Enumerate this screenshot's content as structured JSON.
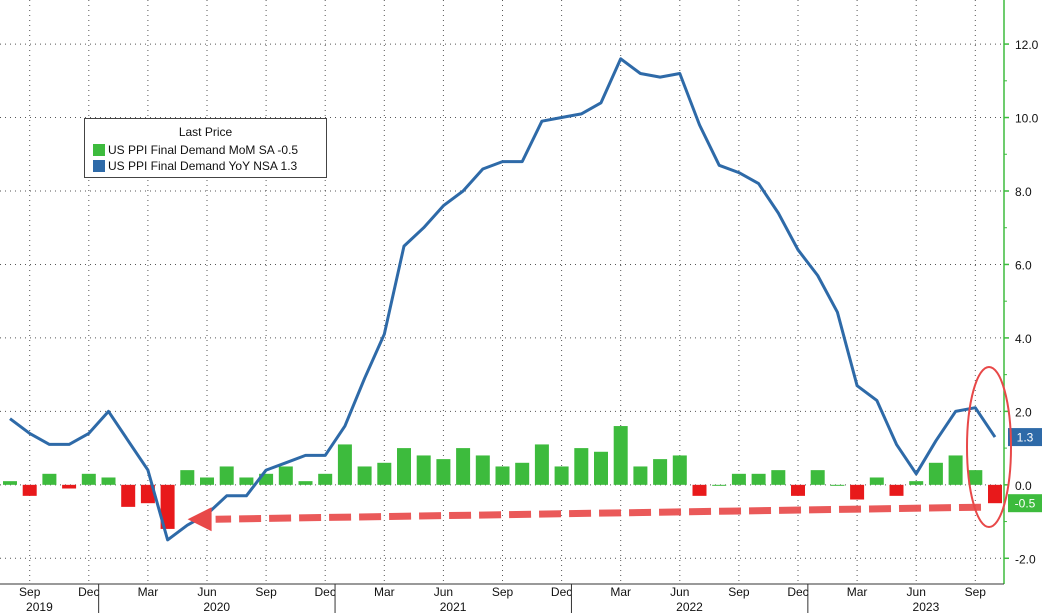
{
  "legend": {
    "title": "Last Price",
    "items": [
      {
        "label": "US PPI Final Demand MoM SA  -0.5",
        "color": "#3dbb3d"
      },
      {
        "label": "US PPI Final Demand YoY NSA 1.3",
        "color": "#2e6aa8"
      }
    ]
  },
  "colors": {
    "bar_positive": "#3dbb3d",
    "bar_negative": "#e8191b",
    "line": "#2e6aa8",
    "last_value_bar_badge": "#3dbb3d",
    "last_value_line_badge": "#2e6aa8",
    "annotation": "#e84848",
    "axis_line": "#3dbb3d"
  },
  "chart_data": {
    "type": "bar+line",
    "y_axis": {
      "position": "right",
      "ylim": [
        -2.7,
        13.2
      ],
      "ticks": [
        12.0,
        10.0,
        8.0,
        6.0,
        4.0,
        2.0,
        0.0,
        -2.0
      ],
      "tick_labels": [
        "12.0",
        "10.0",
        "8.0",
        "6.0",
        "4.0",
        "2.0",
        "0.0",
        "-2.0"
      ]
    },
    "x_axis": {
      "month_labels": [
        "Sep",
        "Dec",
        "Mar",
        "Jun",
        "Sep",
        "Dec",
        "Mar",
        "Jun",
        "Sep",
        "Dec",
        "Mar",
        "Jun",
        "Sep",
        "Dec",
        "Mar",
        "Jun",
        "Sep"
      ],
      "month_label_dates": [
        "2019-09",
        "2019-12",
        "2020-03",
        "2020-06",
        "2020-09",
        "2020-12",
        "2021-03",
        "2021-06",
        "2021-09",
        "2021-12",
        "2022-03",
        "2022-06",
        "2022-09",
        "2022-12",
        "2023-03",
        "2023-06",
        "2023-09"
      ],
      "year_labels": [
        "2019",
        "2020",
        "2021",
        "2022",
        "2023"
      ],
      "year_label_dates": [
        "2019-10",
        "2020-07",
        "2021-07",
        "2022-07",
        "2023-07"
      ],
      "grid": true
    },
    "months": [
      "2019-08",
      "2019-09",
      "2019-10",
      "2019-11",
      "2019-12",
      "2020-01",
      "2020-02",
      "2020-03",
      "2020-04",
      "2020-05",
      "2020-06",
      "2020-07",
      "2020-08",
      "2020-09",
      "2020-10",
      "2020-11",
      "2020-12",
      "2021-01",
      "2021-02",
      "2021-03",
      "2021-04",
      "2021-05",
      "2021-06",
      "2021-07",
      "2021-08",
      "2021-09",
      "2021-10",
      "2021-11",
      "2021-12",
      "2022-01",
      "2022-02",
      "2022-03",
      "2022-04",
      "2022-05",
      "2022-06",
      "2022-07",
      "2022-08",
      "2022-09",
      "2022-10",
      "2022-11",
      "2022-12",
      "2023-01",
      "2023-02",
      "2023-03",
      "2023-04",
      "2023-05",
      "2023-06",
      "2023-07",
      "2023-08",
      "2023-09",
      "2023-10"
    ],
    "series": [
      {
        "name": "US PPI Final Demand MoM SA",
        "kind": "bar",
        "values": [
          0.1,
          -0.3,
          0.3,
          -0.1,
          0.3,
          0.2,
          -0.6,
          -0.5,
          -1.2,
          0.4,
          0.2,
          0.5,
          0.2,
          0.3,
          0.5,
          0.1,
          0.3,
          1.1,
          0.5,
          0.6,
          1.0,
          0.8,
          0.7,
          1.0,
          0.8,
          0.5,
          0.6,
          1.1,
          0.5,
          1.0,
          0.9,
          1.6,
          0.5,
          0.7,
          0.8,
          -0.3,
          0.0,
          0.3,
          0.3,
          0.4,
          -0.3,
          0.4,
          0.0,
          -0.4,
          0.2,
          -0.3,
          0.1,
          0.6,
          0.8,
          0.4,
          -0.5
        ],
        "last_value": "-0.5"
      },
      {
        "name": "US PPI Final Demand YoY NSA",
        "kind": "line",
        "values": [
          1.8,
          1.4,
          1.1,
          1.1,
          1.4,
          2.0,
          1.2,
          0.4,
          -1.5,
          -1.1,
          -0.8,
          -0.3,
          -0.3,
          0.4,
          0.6,
          0.8,
          0.8,
          1.6,
          2.9,
          4.1,
          6.5,
          7.0,
          7.6,
          8.0,
          8.6,
          8.8,
          8.8,
          9.9,
          10.0,
          10.1,
          10.4,
          11.6,
          11.2,
          11.1,
          11.2,
          9.8,
          8.7,
          8.5,
          8.2,
          7.4,
          6.4,
          5.7,
          4.7,
          2.7,
          2.3,
          1.1,
          0.3,
          1.2,
          2.0,
          2.1,
          1.3
        ],
        "last_value": "1.3"
      }
    ]
  }
}
